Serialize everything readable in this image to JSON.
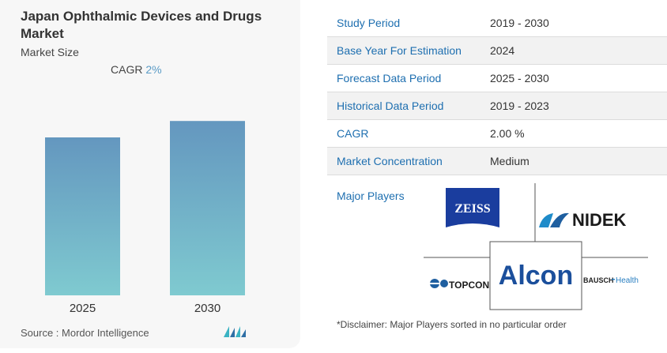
{
  "header": {
    "title": "Japan Ophthalmic Devices and Drugs Market",
    "subtitle": "Market Size",
    "cagr_label": "CAGR",
    "cagr_value": "2%"
  },
  "chart_data": {
    "type": "bar",
    "categories": [
      "2025",
      "2030"
    ],
    "values": [
      1.0,
      1.104
    ],
    "ylim": [
      0,
      1.2
    ],
    "grid": false,
    "colors": {
      "top": "#6497bf",
      "bottom": "#7fcad0"
    }
  },
  "footer": {
    "source": "Source :  Mordor Intelligence"
  },
  "table": [
    {
      "key": "Study Period",
      "value": "2019 - 2030"
    },
    {
      "key": "Base Year For Estimation",
      "value": "2024"
    },
    {
      "key": "Forecast Data Period",
      "value": "2025 - 2030"
    },
    {
      "key": "Historical Data Period",
      "value": "2019 - 2023"
    },
    {
      "key": "CAGR",
      "value": "2.00 %"
    },
    {
      "key": "Market Concentration",
      "value": "Medium"
    }
  ],
  "players": {
    "label": "Major Players",
    "zeiss": "ZEISS",
    "nidek": "NIDEK",
    "topcon": "TOPCON",
    "alcon": "Alcon",
    "bausch_a": "BAUSCH",
    "bausch_b": "Health",
    "disclaimer": "*Disclaimer: Major Players sorted in no particular order"
  }
}
